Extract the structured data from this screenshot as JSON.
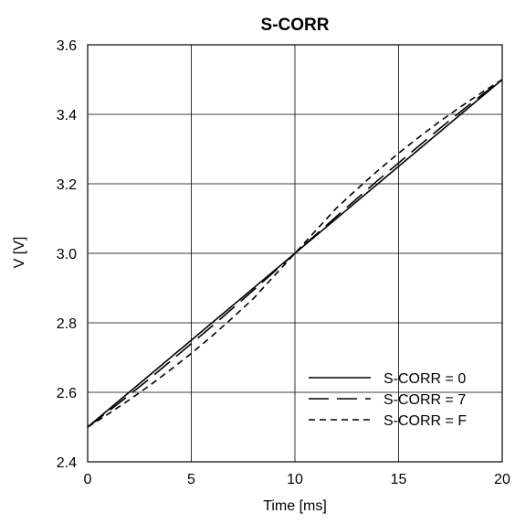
{
  "chart_data": {
    "type": "line",
    "title": "S-CORR",
    "xlabel": "Time [ms]",
    "ylabel": "V [V]",
    "xlim": [
      0,
      20
    ],
    "ylim": [
      2.4,
      3.6
    ],
    "xticks": [
      0,
      5,
      10,
      15,
      20
    ],
    "yticks": [
      2.4,
      2.6,
      2.8,
      3.0,
      3.2,
      3.4,
      3.6
    ],
    "ytick_labels": [
      "2.4",
      "2.6",
      "2.8",
      "3.0",
      "3.2",
      "3.4",
      "3.6"
    ],
    "grid": true,
    "legend_position": "bottom-right",
    "series": [
      {
        "name": "S-CORR = 0",
        "line_style": "solid",
        "x": [
          0,
          20
        ],
        "y": [
          2.5,
          3.5
        ]
      },
      {
        "name": "S-CORR = 7",
        "line_style": "long-dash",
        "x": [
          0,
          1,
          2,
          3,
          4,
          5,
          6,
          7,
          8,
          9,
          10,
          11,
          12,
          13,
          14,
          15,
          16,
          17,
          18,
          19,
          20
        ],
        "y": [
          2.5,
          2.545,
          2.592,
          2.64,
          2.69,
          2.74,
          2.79,
          2.842,
          2.894,
          2.947,
          3.0,
          3.053,
          3.106,
          3.158,
          3.21,
          3.26,
          3.31,
          3.36,
          3.408,
          3.455,
          3.5
        ]
      },
      {
        "name": "S-CORR = F",
        "line_style": "short-dash",
        "x": [
          0,
          1,
          2,
          3,
          4,
          5,
          6,
          7,
          8,
          9,
          10,
          11,
          12,
          13,
          14,
          15,
          16,
          17,
          18,
          19,
          20
        ],
        "y": [
          2.5,
          2.538,
          2.578,
          2.62,
          2.665,
          2.712,
          2.762,
          2.815,
          2.87,
          2.935,
          3.0,
          3.065,
          3.13,
          3.185,
          3.238,
          3.288,
          3.335,
          3.38,
          3.422,
          3.462,
          3.5
        ]
      }
    ]
  }
}
